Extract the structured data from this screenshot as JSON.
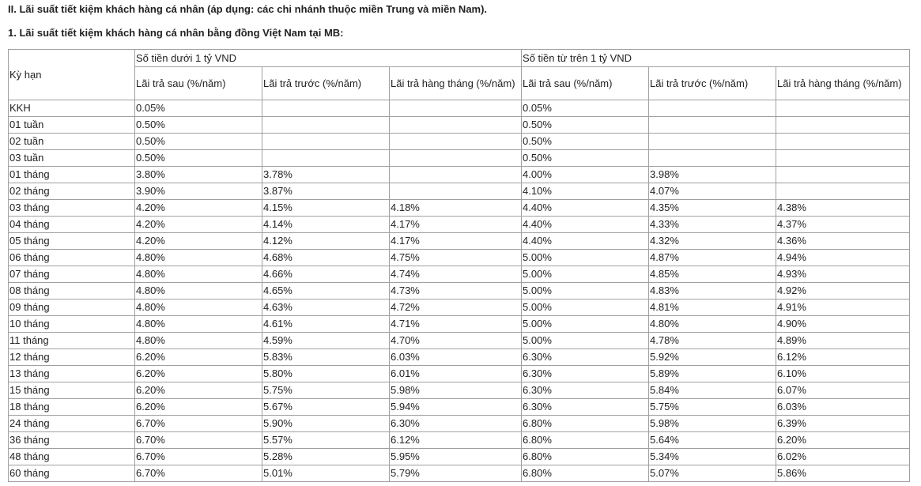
{
  "headings": [
    "II. Lãi suất tiết kiệm khách hàng cá nhân (áp dụng: các chi nhánh thuộc miền Trung và miền Nam).",
    "1. Lãi suất tiết kiệm khách hàng cá nhân bằng đồng Việt Nam tại MB:"
  ],
  "table": {
    "term_header": "Kỳ hạn",
    "groups": [
      "Số tiền dưới 1 tỷ VND",
      "Số tiền từ trên 1 tỷ VND"
    ],
    "columns": [
      "Lãi trả sau (%/năm)",
      "Lãi trả trước (%/năm)",
      "Lãi trả hàng tháng (%/năm)",
      "Lãi trả sau (%/năm)",
      "Lãi trả trước (%/năm)",
      "Lãi trả hàng tháng (%/năm)"
    ],
    "rows": [
      [
        "KKH",
        "0.05%",
        null,
        null,
        "0.05%",
        null,
        null
      ],
      [
        "01 tuần",
        "0.50%",
        null,
        null,
        "0.50%",
        null,
        null
      ],
      [
        "02 tuần",
        "0.50%",
        null,
        null,
        "0.50%",
        null,
        null
      ],
      [
        "03 tuần",
        "0.50%",
        null,
        null,
        "0.50%",
        null,
        null
      ],
      [
        "01 tháng",
        "3.80%",
        "3.78%",
        null,
        "4.00%",
        "3.98%",
        null
      ],
      [
        "02 tháng",
        "3.90%",
        "3.87%",
        null,
        "4.10%",
        "4.07%",
        null
      ],
      [
        "03 tháng",
        "4.20%",
        "4.15%",
        "4.18%",
        "4.40%",
        "4.35%",
        "4.38%"
      ],
      [
        "04 tháng",
        "4.20%",
        "4.14%",
        "4.17%",
        "4.40%",
        "4.33%",
        "4.37%"
      ],
      [
        "05 tháng",
        "4.20%",
        "4.12%",
        "4.17%",
        "4.40%",
        "4.32%",
        "4.36%"
      ],
      [
        "06 tháng",
        "4.80%",
        "4.68%",
        "4.75%",
        "5.00%",
        "4.87%",
        "4.94%"
      ],
      [
        "07 tháng",
        "4.80%",
        "4.66%",
        "4.74%",
        "5.00%",
        "4.85%",
        "4.93%"
      ],
      [
        "08 tháng",
        "4.80%",
        "4.65%",
        "4.73%",
        "5.00%",
        "4.83%",
        "4.92%"
      ],
      [
        "09 tháng",
        "4.80%",
        "4.63%",
        "4.72%",
        "5.00%",
        "4.81%",
        "4.91%"
      ],
      [
        "10 tháng",
        "4.80%",
        "4.61%",
        "4.71%",
        "5.00%",
        "4.80%",
        "4.90%"
      ],
      [
        "11 tháng",
        "4.80%",
        "4.59%",
        "4.70%",
        "5.00%",
        "4.78%",
        "4.89%"
      ],
      [
        "12 tháng",
        "6.20%",
        "5.83%",
        "6.03%",
        "6.30%",
        "5.92%",
        "6.12%"
      ],
      [
        "13 tháng",
        "6.20%",
        "5.80%",
        "6.01%",
        "6.30%",
        "5.89%",
        "6.10%"
      ],
      [
        "15 tháng",
        "6.20%",
        "5.75%",
        "5.98%",
        "6.30%",
        "5.84%",
        "6.07%"
      ],
      [
        "18 tháng",
        "6.20%",
        "5.67%",
        "5.94%",
        "6.30%",
        "5.75%",
        "6.03%"
      ],
      [
        "24 tháng",
        "6.70%",
        "5.90%",
        "6.30%",
        "6.80%",
        "5.98%",
        "6.39%"
      ],
      [
        "36 tháng",
        "6.70%",
        "5.57%",
        "6.12%",
        "6.80%",
        "5.64%",
        "6.20%"
      ],
      [
        "48 tháng",
        "6.70%",
        "5.28%",
        "5.95%",
        "6.80%",
        "5.34%",
        "6.02%"
      ],
      [
        "60 tháng",
        "6.70%",
        "5.01%",
        "5.79%",
        "6.80%",
        "5.07%",
        "5.86%"
      ]
    ]
  }
}
